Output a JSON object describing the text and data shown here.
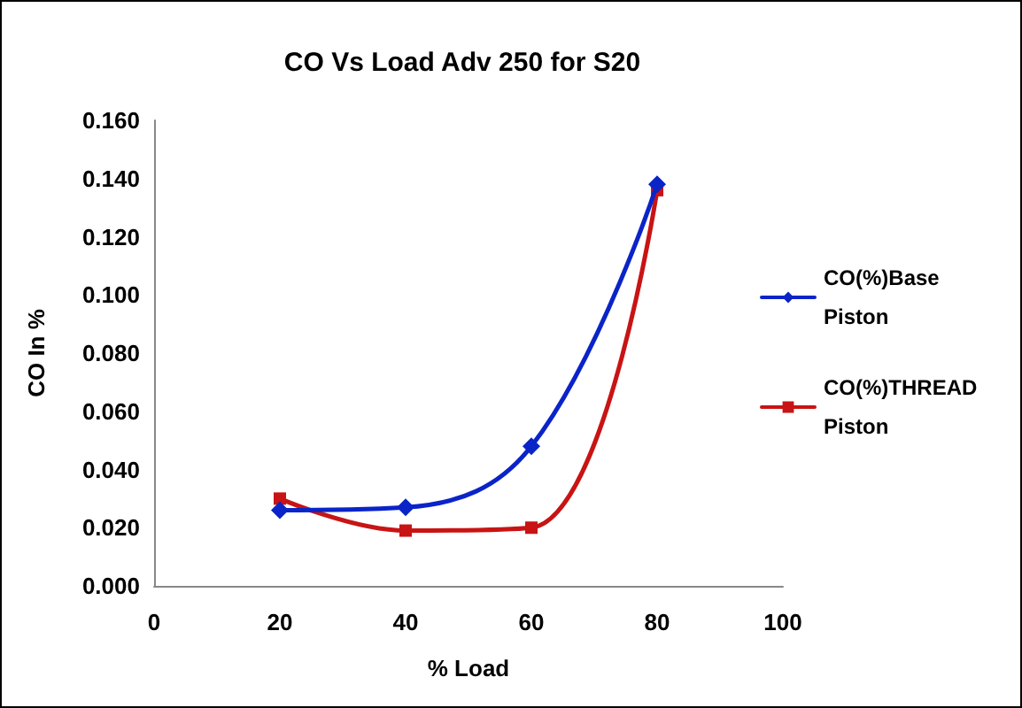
{
  "chart_data": {
    "type": "line",
    "title": "CO Vs Load Adv 250 for S20",
    "xlabel": "% Load",
    "ylabel": "CO In %",
    "x": [
      20,
      40,
      60,
      80
    ],
    "series": [
      {
        "name": "CO(%)Base Piston",
        "color": "#0a24c8",
        "marker": "diamond",
        "values": [
          0.026,
          0.027,
          0.048,
          0.138
        ]
      },
      {
        "name": "CO(%)THREAD Piston",
        "color": "#c81414",
        "marker": "square",
        "values": [
          0.03,
          0.019,
          0.02,
          0.136
        ]
      }
    ],
    "xlim": [
      0,
      100
    ],
    "xticks": [
      0,
      20,
      40,
      60,
      80,
      100
    ],
    "ylim": [
      0,
      0.16
    ],
    "yticks": [
      {
        "value": 0,
        "label": "0.000"
      },
      {
        "value": 0.02,
        "label": "0.020"
      },
      {
        "value": 0.04,
        "label": "0.040"
      },
      {
        "value": 0.06,
        "label": "0.060"
      },
      {
        "value": 0.08,
        "label": "0.080"
      },
      {
        "value": 0.1,
        "label": "0.100"
      },
      {
        "value": 0.12,
        "label": "0.120"
      },
      {
        "value": 0.14,
        "label": "0.140"
      },
      {
        "value": 0.16,
        "label": "0.160"
      }
    ],
    "grid": false,
    "legend": "right",
    "line_style": "solid"
  }
}
